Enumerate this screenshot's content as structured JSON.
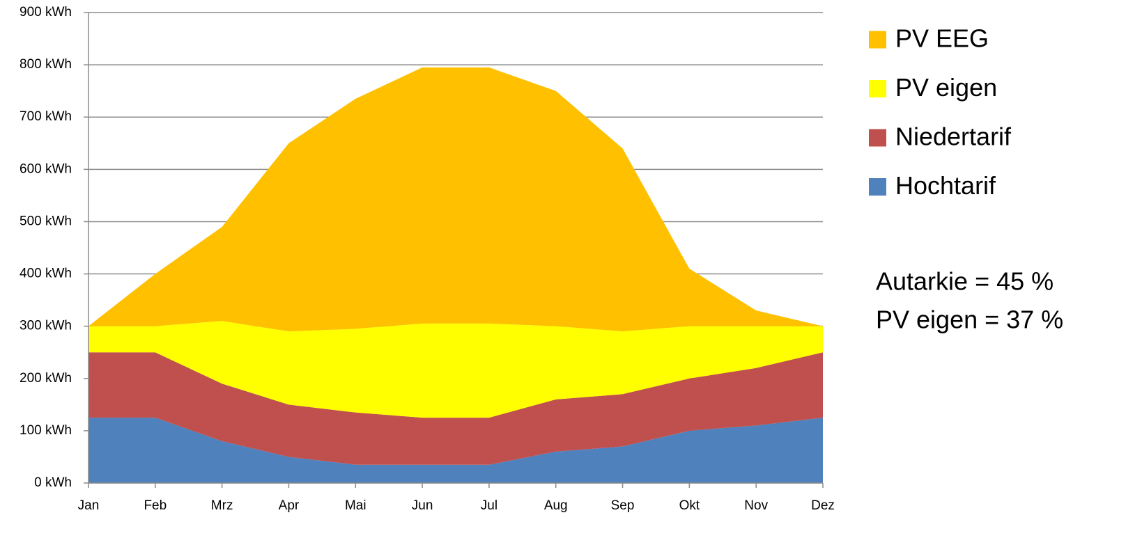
{
  "chart_data": {
    "type": "stacked_area",
    "categories": [
      "Jan",
      "Feb",
      "Mrz",
      "Apr",
      "Mai",
      "Jun",
      "Jul",
      "Aug",
      "Sep",
      "Okt",
      "Nov",
      "Dez"
    ],
    "series": [
      {
        "name": "Hochtarif",
        "color": "#4f81bd",
        "values": [
          125,
          125,
          80,
          50,
          35,
          35,
          35,
          60,
          70,
          100,
          110,
          125
        ]
      },
      {
        "name": "Niedertarif",
        "color": "#c0504d",
        "values": [
          125,
          125,
          110,
          100,
          100,
          90,
          90,
          100,
          100,
          100,
          110,
          125
        ]
      },
      {
        "name": "PV eigen",
        "color": "#ffff00",
        "values": [
          50,
          50,
          120,
          140,
          160,
          180,
          180,
          140,
          120,
          100,
          80,
          50
        ]
      },
      {
        "name": "PV EEG",
        "color": "#ffc000",
        "values": [
          0,
          100,
          180,
          360,
          440,
          490,
          490,
          450,
          350,
          110,
          30,
          0
        ]
      }
    ],
    "ylim": [
      0,
      900
    ],
    "yticks": [
      {
        "value": 0,
        "label": "0 kWh"
      },
      {
        "value": 100,
        "label": "100 kWh"
      },
      {
        "value": 200,
        "label": "200 kWh"
      },
      {
        "value": 300,
        "label": "300 kWh"
      },
      {
        "value": 400,
        "label": "400 kWh"
      },
      {
        "value": 500,
        "label": "500 kWh"
      },
      {
        "value": 600,
        "label": "600 kWh"
      },
      {
        "value": 700,
        "label": "700 kWh"
      },
      {
        "value": 800,
        "label": "800 kWh"
      },
      {
        "value": 900,
        "label": "900 kWh"
      }
    ],
    "grid": true,
    "legend": "right",
    "annotations": [
      "Autarkie = 45 %",
      "PV eigen = 37 %"
    ]
  }
}
